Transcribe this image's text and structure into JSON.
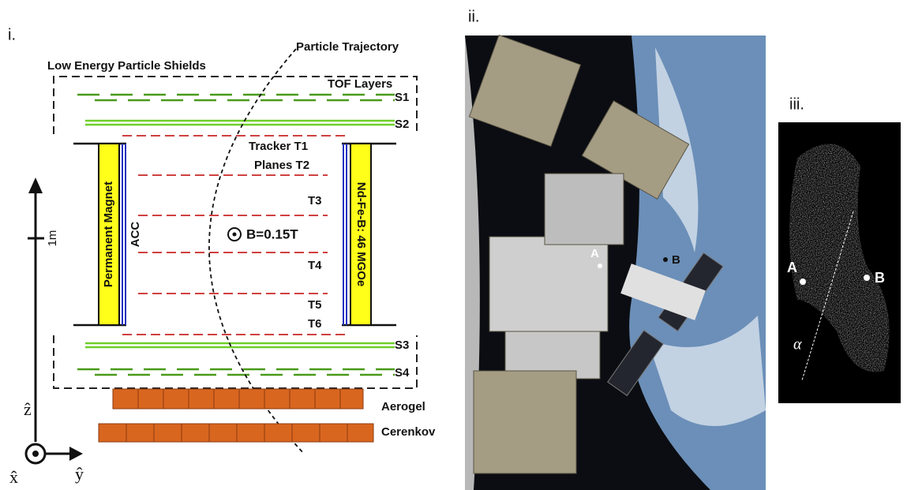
{
  "panel_i": {
    "label": "i.",
    "trajectory_label": "Particle Trajectory",
    "shields_label": "Low Energy Particle Shields",
    "tof_label": "TOF Layers",
    "tof_planes": [
      "S1",
      "S2",
      "S3",
      "S4"
    ],
    "tracker_labels": [
      "Tracker T1",
      "Planes T2",
      "T3",
      "T4",
      "T5",
      "T6"
    ],
    "magnet_label": "Permanent Magnet",
    "acc_label": "ACC",
    "magnet_material": "Nd-Fe-B: 46 MGOe",
    "field_label": "B=0.15T",
    "scale_label": "1m",
    "aerogel_label": "Aerogel",
    "cerenkov_label": "Cerenkov",
    "axes": {
      "z": "ẑ",
      "x": "x̂",
      "y": "ŷ"
    }
  },
  "panel_ii": {
    "label": "ii.",
    "points": [
      "A",
      "B"
    ]
  },
  "panel_iii": {
    "label": "iii.",
    "points": [
      "A",
      "B"
    ],
    "angle": "α"
  }
}
